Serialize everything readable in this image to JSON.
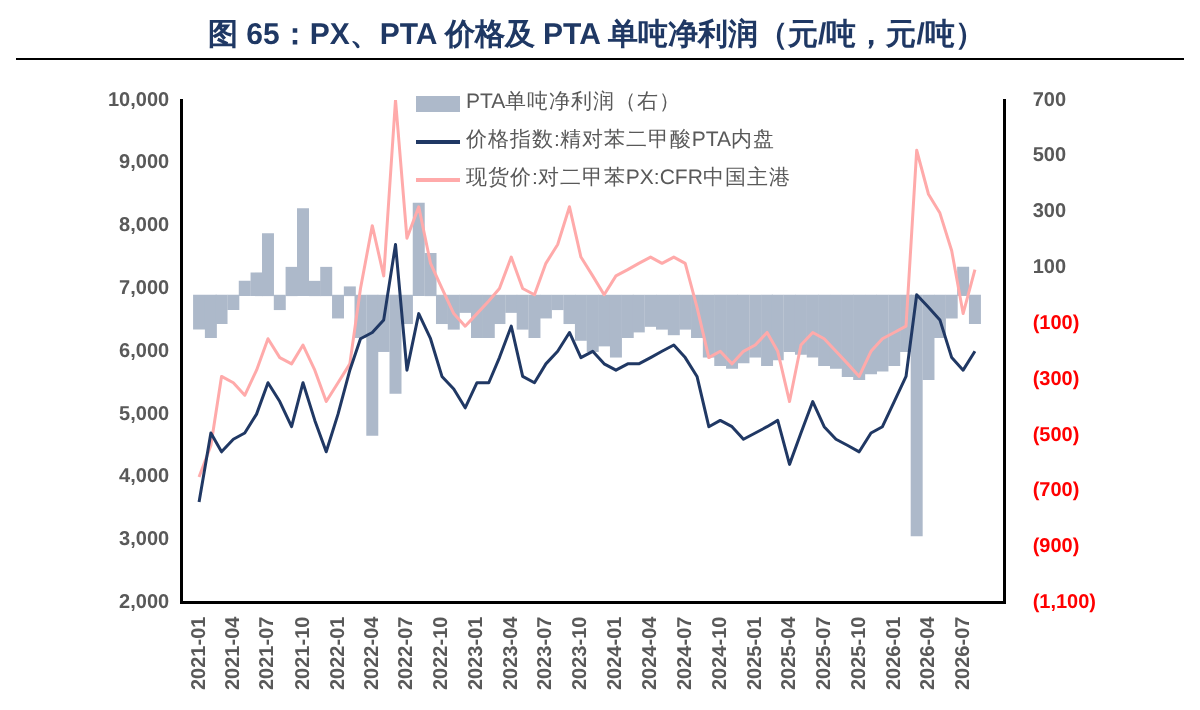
{
  "chart_data": {
    "type": "line",
    "title": "图 65：PX、PTA 价格及 PTA 单吨净利润（元/吨，元/吨）",
    "x": [
      "2021-01",
      "2021-02",
      "2021-03",
      "2021-04",
      "2021-05",
      "2021-06",
      "2021-07",
      "2021-08",
      "2021-09",
      "2021-10",
      "2021-11",
      "2021-12",
      "2022-01",
      "2022-02",
      "2022-03",
      "2022-04",
      "2022-05",
      "2022-06",
      "2022-07",
      "2022-08",
      "2022-09",
      "2022-10",
      "2022-11",
      "2022-12",
      "2023-01",
      "2023-02",
      "2023-03",
      "2023-04",
      "2023-05",
      "2023-06",
      "2023-07",
      "2023-08",
      "2023-09",
      "2023-10",
      "2023-11",
      "2023-12",
      "2024-01",
      "2024-02",
      "2024-03",
      "2024-04",
      "2024-05",
      "2024-06",
      "2024-07",
      "2024-08",
      "2024-09",
      "2024-10",
      "2024-11",
      "2024-12",
      "2025-01",
      "2025-02",
      "2025-03",
      "2025-04",
      "2025-05",
      "2025-06",
      "2025-07",
      "2025-08",
      "2025-09",
      "2025-10",
      "2025-11",
      "2025-12",
      "2026-01",
      "2026-02",
      "2026-03",
      "2026-04",
      "2026-05",
      "2026-06",
      "2026-07",
      "2026-08"
    ],
    "series": [
      {
        "name": "PTA单吨净利润（右）",
        "type": "bar",
        "axis": "y2",
        "color": "#adb9ca",
        "values": [
          -120,
          -150,
          -100,
          -50,
          50,
          80,
          220,
          -50,
          100,
          310,
          50,
          100,
          -80,
          30,
          -150,
          -500,
          -200,
          -350,
          -100,
          330,
          150,
          -100,
          -120,
          -60,
          -150,
          -150,
          -100,
          -60,
          -120,
          -150,
          -80,
          -50,
          -100,
          -160,
          -200,
          -180,
          -220,
          -150,
          -130,
          -110,
          -120,
          -140,
          -120,
          -150,
          -220,
          -250,
          -260,
          -240,
          -220,
          -250,
          -230,
          -200,
          -210,
          -220,
          -250,
          -260,
          -290,
          -300,
          -280,
          -270,
          -250,
          -200,
          -860,
          -300,
          -150,
          -80,
          100,
          -100
        ]
      },
      {
        "name": "价格指数:精对苯二甲酸PTA内盘",
        "color": "#203864",
        "values": [
          3600,
          4700,
          4400,
          4600,
          4700,
          5000,
          5500,
          5200,
          4800,
          5500,
          4900,
          4400,
          5000,
          5700,
          6200,
          6300,
          6500,
          7700,
          5700,
          6600,
          6200,
          5600,
          5400,
          5100,
          5500,
          5500,
          5900,
          6400,
          5600,
          5500,
          5800,
          6000,
          6300,
          5900,
          6000,
          5800,
          5700,
          5800,
          5800,
          5900,
          6000,
          6100,
          5900,
          5600,
          4800,
          4900,
          4800,
          4600,
          4700,
          4800,
          4900,
          4200,
          4700,
          5200,
          4800,
          4600,
          4500,
          4400,
          4700,
          4800,
          5200,
          5600,
          6900,
          6700,
          6500,
          5900,
          5700,
          6000
        ]
      },
      {
        "name": "现货价:对二甲苯PX:CFR中国主港",
        "color": "#ffaaaa",
        "values": [
          4000,
          4500,
          5600,
          5500,
          5300,
          5700,
          6200,
          5900,
          5800,
          6100,
          5700,
          5200,
          5500,
          5800,
          7000,
          8000,
          7200,
          10000,
          7800,
          8300,
          7400,
          7000,
          6600,
          6400,
          6600,
          6800,
          7000,
          7500,
          7000,
          6900,
          7400,
          7700,
          8300,
          7500,
          7200,
          6900,
          7200,
          7300,
          7400,
          7500,
          7400,
          7500,
          7400,
          6700,
          5900,
          6000,
          5800,
          6000,
          6100,
          6300,
          6000,
          5200,
          6100,
          6300,
          6200,
          6000,
          5800,
          5600,
          6000,
          6200,
          6300,
          6400,
          9200,
          8500,
          8200,
          7600,
          6600,
          7300
        ]
      }
    ],
    "xlim": [
      "2021-01",
      "2026-09"
    ],
    "xticks": [
      "2021-01",
      "2021-04",
      "2021-07",
      "2021-10",
      "2022-01",
      "2022-04",
      "2022-07",
      "2022-10",
      "2023-01",
      "2023-04",
      "2023-07",
      "2023-10",
      "2024-01",
      "2024-04",
      "2024-07",
      "2024-10",
      "2025-01",
      "2025-04",
      "2025-07",
      "2025-10",
      "2026-01",
      "2026-04",
      "2026-07"
    ],
    "ylim": [
      2000,
      10000
    ],
    "yticks": [
      {
        "value": 2000,
        "label": "2,000"
      },
      {
        "value": 3000,
        "label": "3,000"
      },
      {
        "value": 4000,
        "label": "4,000"
      },
      {
        "value": 5000,
        "label": "5,000"
      },
      {
        "value": 6000,
        "label": "6,000"
      },
      {
        "value": 7000,
        "label": "7,000"
      },
      {
        "value": 8000,
        "label": "8,000"
      },
      {
        "value": 9000,
        "label": "9,000"
      },
      {
        "value": 10000,
        "label": "10,000"
      }
    ],
    "y2lim": [
      -1100,
      700
    ],
    "y2ticks": [
      {
        "value": -1100,
        "label": "(1,100)"
      },
      {
        "value": -900,
        "label": "(900)"
      },
      {
        "value": -700,
        "label": "(700)"
      },
      {
        "value": -500,
        "label": "(500)"
      },
      {
        "value": -300,
        "label": "(300)"
      },
      {
        "value": -100,
        "label": "(100)"
      },
      100,
      300,
      500,
      700
    ],
    "grid": false,
    "legend": "top",
    "line_style": "solid",
    "marker": "none"
  }
}
